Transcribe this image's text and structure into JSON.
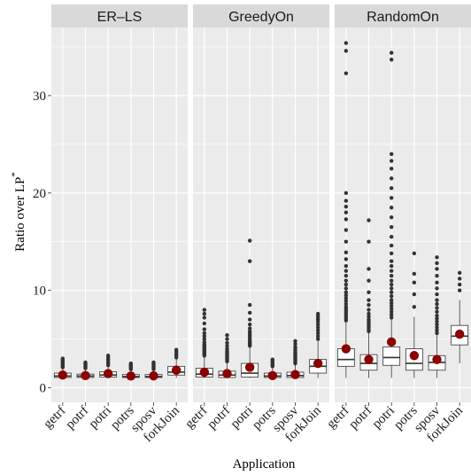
{
  "chart_data": {
    "type": "boxplot",
    "xlabel": "Application",
    "ylabel": "Ratio over LP",
    "ylabel_superscript": "*",
    "ylim": [
      -1.5,
      37
    ],
    "yticks": [
      0,
      10,
      20,
      30
    ],
    "categories": [
      "getrf",
      "potrf",
      "potri",
      "potrs",
      "sposv",
      "forkJoin"
    ],
    "colors": {
      "panel_bg": "#ebebeb",
      "grid": "#ffffff",
      "strip_bg": "#d9d9d9",
      "mean": "#8b0000",
      "outlier": "#333333",
      "box_fill": "#ffffff",
      "box_line": "#333333"
    },
    "panels": [
      {
        "name": "ER–LS",
        "boxes": [
          {
            "category": "getrf",
            "whisker_low": 1.0,
            "q1": 1.05,
            "median": 1.2,
            "q3": 1.5,
            "whisker_high": 2.0,
            "mean": 1.3,
            "outliers": [
              2.1,
              2.2,
              2.3,
              2.4,
              2.5,
              2.6,
              2.7,
              2.8,
              2.9,
              3.0
            ]
          },
          {
            "category": "potrf",
            "whisker_low": 1.0,
            "q1": 1.05,
            "median": 1.2,
            "q3": 1.4,
            "whisker_high": 1.9,
            "mean": 1.25,
            "outliers": [
              2.0,
              2.1,
              2.2,
              2.3,
              2.4,
              2.5,
              2.6
            ]
          },
          {
            "category": "potri",
            "whisker_low": 1.0,
            "q1": 1.1,
            "median": 1.3,
            "q3": 1.65,
            "whisker_high": 2.2,
            "mean": 1.45,
            "outliers": [
              2.3,
              2.5,
              2.7,
              2.9,
              3.1,
              3.3
            ]
          },
          {
            "category": "potrs",
            "whisker_low": 1.0,
            "q1": 1.05,
            "median": 1.15,
            "q3": 1.35,
            "whisker_high": 1.8,
            "mean": 1.2,
            "outliers": [
              1.9,
              2.0,
              2.1,
              2.2,
              2.3,
              2.4,
              2.5
            ]
          },
          {
            "category": "sposv",
            "whisker_low": 1.0,
            "q1": 1.05,
            "median": 1.15,
            "q3": 1.35,
            "whisker_high": 1.8,
            "mean": 1.22,
            "outliers": [
              1.9,
              2.0,
              2.1,
              2.2,
              2.3,
              2.4,
              2.5,
              2.6
            ]
          },
          {
            "category": "forkJoin",
            "whisker_low": 1.0,
            "q1": 1.3,
            "median": 1.6,
            "q3": 2.2,
            "whisker_high": 3.0,
            "mean": 1.8,
            "outliers": [
              3.1,
              3.3,
              3.5,
              3.7,
              3.9
            ]
          }
        ]
      },
      {
        "name": "GreedyOn",
        "boxes": [
          {
            "category": "getrf",
            "whisker_low": 1.0,
            "q1": 1.1,
            "median": 1.4,
            "q3": 2.0,
            "whisker_high": 3.2,
            "mean": 1.6,
            "outliers": [
              3.3,
              3.4,
              3.5,
              3.6,
              3.7,
              3.8,
              3.9,
              4.0,
              4.1,
              4.2,
              4.3,
              4.4,
              4.5,
              4.7,
              5.0,
              5.3,
              5.6,
              6.0,
              6.6,
              7.2,
              7.6,
              8.0
            ]
          },
          {
            "category": "potrf",
            "whisker_low": 1.0,
            "q1": 1.05,
            "median": 1.3,
            "q3": 1.7,
            "whisker_high": 2.6,
            "mean": 1.45,
            "outliers": [
              2.7,
              2.8,
              2.9,
              3.0,
              3.1,
              3.2,
              3.3,
              3.4,
              3.5,
              3.6,
              3.7,
              3.8,
              4.0,
              4.3,
              4.6,
              5.0,
              5.4
            ]
          },
          {
            "category": "potri",
            "whisker_low": 1.0,
            "q1": 1.1,
            "median": 1.5,
            "q3": 2.5,
            "whisker_high": 4.2,
            "mean": 2.1,
            "outliers": [
              4.3,
              4.4,
              4.5,
              4.6,
              4.7,
              4.8,
              5.0,
              5.2,
              5.4,
              5.6,
              5.8,
              6.1,
              6.5,
              7.0,
              7.7,
              8.5,
              13.0,
              15.1
            ]
          },
          {
            "category": "potrs",
            "whisker_low": 1.0,
            "q1": 1.05,
            "median": 1.2,
            "q3": 1.5,
            "whisker_high": 2.1,
            "mean": 1.25,
            "outliers": [
              2.2,
              2.3,
              2.4,
              2.5,
              2.6,
              2.7,
              2.8,
              2.9
            ]
          },
          {
            "category": "sposv",
            "whisker_low": 1.0,
            "q1": 1.05,
            "median": 1.25,
            "q3": 1.6,
            "whisker_high": 2.4,
            "mean": 1.35,
            "outliers": [
              2.5,
              2.6,
              2.7,
              2.8,
              2.9,
              3.0,
              3.1,
              3.2,
              3.3,
              3.4,
              3.5,
              3.6,
              3.8,
              4.0,
              4.2,
              4.5,
              4.8
            ]
          },
          {
            "category": "forkJoin",
            "whisker_low": 1.0,
            "q1": 1.5,
            "median": 2.2,
            "q3": 2.9,
            "whisker_high": 4.8,
            "mean": 2.5,
            "outliers": [
              5.0,
              5.3,
              5.6,
              5.9,
              6.2,
              6.5,
              6.8,
              7.0,
              7.2,
              7.4,
              7.6
            ]
          }
        ]
      },
      {
        "name": "RandomOn",
        "boxes": [
          {
            "category": "getrf",
            "whisker_low": 1.0,
            "q1": 2.2,
            "median": 2.9,
            "q3": 4.0,
            "whisker_high": 6.7,
            "mean": 4.0,
            "outliers": [
              6.9,
              7.1,
              7.3,
              7.5,
              7.7,
              7.9,
              8.1,
              8.3,
              8.6,
              8.9,
              9.2,
              9.5,
              9.8,
              10.2,
              10.6,
              11.0,
              11.5,
              12.0,
              12.5,
              13.2,
              13.9,
              15.0,
              16.2,
              17.3,
              18.0,
              18.6,
              19.2,
              20.0,
              32.3,
              34.6,
              35.4
            ]
          },
          {
            "category": "potrf",
            "whisker_low": 1.0,
            "q1": 1.8,
            "median": 2.5,
            "q3": 3.4,
            "whisker_high": 5.6,
            "mean": 2.9,
            "outliers": [
              5.8,
              6.0,
              6.2,
              6.4,
              6.6,
              6.8,
              7.0,
              7.3,
              7.6,
              8.0,
              8.5,
              9.0,
              9.8,
              11.0,
              12.2,
              15.0,
              17.2
            ]
          },
          {
            "category": "potri",
            "whisker_low": 1.0,
            "q1": 2.3,
            "median": 3.1,
            "q3": 4.2,
            "whisker_high": 7.0,
            "mean": 4.7,
            "outliers": [
              7.2,
              7.5,
              7.8,
              8.1,
              8.4,
              8.7,
              9.0,
              9.4,
              9.8,
              10.2,
              10.6,
              11.0,
              11.5,
              12.0,
              12.5,
              13.0,
              13.8,
              14.6,
              15.5,
              16.5,
              17.5,
              18.5,
              19.5,
              20.5,
              21.5,
              22.5,
              23.3,
              24.0,
              33.7,
              34.4
            ]
          },
          {
            "category": "potrs",
            "whisker_low": 1.0,
            "q1": 1.8,
            "median": 2.5,
            "q3": 4.0,
            "whisker_high": 7.3,
            "mean": 3.3,
            "outliers": [
              8.3,
              9.6,
              10.8,
              11.7,
              13.8
            ]
          },
          {
            "category": "sposv",
            "whisker_low": 1.0,
            "q1": 1.8,
            "median": 2.6,
            "q3": 3.3,
            "whisker_high": 5.4,
            "mean": 2.9,
            "outliers": [
              5.6,
              5.9,
              6.2,
              6.5,
              6.8,
              7.1,
              7.4,
              7.8,
              8.2,
              8.6,
              9.0,
              9.6,
              10.2,
              10.8,
              11.5,
              12.2,
              12.8,
              13.4
            ]
          },
          {
            "category": "forkJoin",
            "whisker_low": 2.5,
            "q1": 4.4,
            "median": 5.3,
            "q3": 6.4,
            "whisker_high": 9.0,
            "mean": 5.5,
            "outliers": [
              10.0,
              10.6,
              11.2,
              11.8
            ]
          }
        ]
      }
    ]
  }
}
